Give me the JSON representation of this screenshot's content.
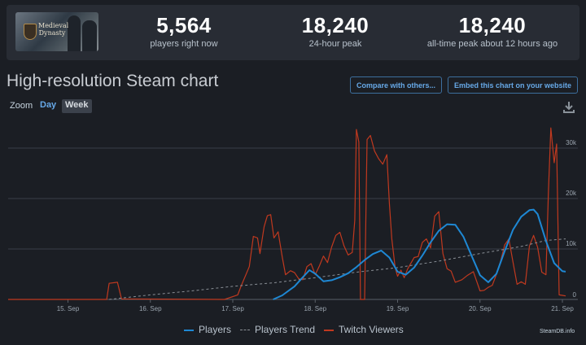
{
  "stats": [
    {
      "value": "5,564",
      "label": "players right now"
    },
    {
      "value": "18,240",
      "label": "24-hour peak"
    },
    {
      "value": "18,240",
      "label": "all-time peak about 12 hours ago"
    }
  ],
  "game_logo": {
    "line1": "Medieval",
    "line2": "Dynasty"
  },
  "title": "High-resolution Steam chart",
  "buttons": {
    "compare": "Compare with others...",
    "embed": "Embed this chart on your website"
  },
  "zoom": {
    "label": "Zoom",
    "day": "Day",
    "week": "Week"
  },
  "credit": "SteamDB.info",
  "colors": {
    "players": "#1e88d4",
    "trend": "#8a8f96",
    "twitch": "#c0391f",
    "background": "#1b1e24"
  },
  "chart_data": {
    "type": "line",
    "x_ticks": [
      "15. Sep",
      "16. Sep",
      "17. Sep",
      "18. Sep",
      "19. Sep",
      "20. Sep",
      "21. Sep"
    ],
    "y_ticks": [
      "0",
      "10k",
      "20k",
      "30k"
    ],
    "ylim": [
      0,
      35000
    ],
    "legend": "bottom",
    "grid": true,
    "series": [
      {
        "name": "Players",
        "points": [
          [
            2.49,
            0
          ],
          [
            2.6,
            800
          ],
          [
            2.75,
            2600
          ],
          [
            2.85,
            4400
          ],
          [
            2.93,
            5800
          ],
          [
            3.0,
            5100
          ],
          [
            3.1,
            3600
          ],
          [
            3.2,
            3800
          ],
          [
            3.3,
            4400
          ],
          [
            3.4,
            5200
          ],
          [
            3.5,
            6400
          ],
          [
            3.6,
            7800
          ],
          [
            3.7,
            9000
          ],
          [
            3.8,
            9700
          ],
          [
            3.9,
            8300
          ],
          [
            4.0,
            5500
          ],
          [
            4.1,
            4900
          ],
          [
            4.2,
            6300
          ],
          [
            4.3,
            8700
          ],
          [
            4.4,
            11300
          ],
          [
            4.5,
            13600
          ],
          [
            4.6,
            14900
          ],
          [
            4.7,
            14800
          ],
          [
            4.8,
            12400
          ],
          [
            4.9,
            8600
          ],
          [
            5.0,
            4800
          ],
          [
            5.1,
            3400
          ],
          [
            5.2,
            5100
          ],
          [
            5.3,
            9600
          ],
          [
            5.4,
            13800
          ],
          [
            5.5,
            16400
          ],
          [
            5.6,
            17700
          ],
          [
            5.65,
            17800
          ],
          [
            5.7,
            16900
          ],
          [
            5.8,
            11600
          ],
          [
            5.9,
            7200
          ],
          [
            6.0,
            5600
          ],
          [
            6.04,
            5500
          ]
        ]
      },
      {
        "name": "Players Trend",
        "points": [
          [
            0.5,
            0
          ],
          [
            1.0,
            900
          ],
          [
            1.5,
            1700
          ],
          [
            2.0,
            2600
          ],
          [
            2.5,
            3300
          ],
          [
            3.0,
            4300
          ],
          [
            3.5,
            5400
          ],
          [
            4.0,
            6300
          ],
          [
            4.5,
            7600
          ],
          [
            5.0,
            9100
          ],
          [
            5.5,
            10500
          ],
          [
            5.8,
            11700
          ],
          [
            6.04,
            12000
          ]
        ]
      },
      {
        "name": "Twitch Viewers",
        "points": [
          [
            -2.5,
            0
          ],
          [
            0.47,
            0
          ],
          [
            0.5,
            3200
          ],
          [
            0.6,
            3400
          ],
          [
            0.65,
            100
          ],
          [
            1.9,
            0
          ],
          [
            2.06,
            900
          ],
          [
            2.1,
            2600
          ],
          [
            2.2,
            6500
          ],
          [
            2.25,
            12500
          ],
          [
            2.3,
            12200
          ],
          [
            2.33,
            9100
          ],
          [
            2.38,
            14400
          ],
          [
            2.42,
            16600
          ],
          [
            2.46,
            16800
          ],
          [
            2.5,
            12200
          ],
          [
            2.55,
            13400
          ],
          [
            2.6,
            8400
          ],
          [
            2.64,
            4900
          ],
          [
            2.7,
            5700
          ],
          [
            2.75,
            5300
          ],
          [
            2.8,
            4100
          ],
          [
            2.85,
            3900
          ],
          [
            2.9,
            6500
          ],
          [
            2.95,
            7100
          ],
          [
            3.0,
            4900
          ],
          [
            3.05,
            6600
          ],
          [
            3.1,
            8600
          ],
          [
            3.15,
            7300
          ],
          [
            3.2,
            10400
          ],
          [
            3.25,
            12700
          ],
          [
            3.3,
            13300
          ],
          [
            3.35,
            10600
          ],
          [
            3.4,
            8800
          ],
          [
            3.45,
            9300
          ],
          [
            3.48,
            15700
          ],
          [
            3.5,
            33700
          ],
          [
            3.53,
            31200
          ],
          [
            3.55,
            0
          ],
          [
            3.6,
            0
          ],
          [
            3.63,
            31700
          ],
          [
            3.67,
            32500
          ],
          [
            3.72,
            29400
          ],
          [
            3.77,
            27900
          ],
          [
            3.82,
            26800
          ],
          [
            3.87,
            28700
          ],
          [
            3.9,
            19100
          ],
          [
            3.93,
            12000
          ],
          [
            3.97,
            6300
          ],
          [
            4.0,
            4600
          ],
          [
            4.04,
            5800
          ],
          [
            4.08,
            4300
          ],
          [
            4.12,
            6000
          ],
          [
            4.2,
            8300
          ],
          [
            4.25,
            8500
          ],
          [
            4.3,
            11300
          ],
          [
            4.35,
            12000
          ],
          [
            4.4,
            10200
          ],
          [
            4.45,
            16500
          ],
          [
            4.5,
            17400
          ],
          [
            4.55,
            9100
          ],
          [
            4.6,
            6100
          ],
          [
            4.65,
            5600
          ],
          [
            4.7,
            3400
          ],
          [
            4.78,
            3900
          ],
          [
            4.85,
            4800
          ],
          [
            4.92,
            5500
          ],
          [
            5.0,
            1700
          ],
          [
            5.05,
            1800
          ],
          [
            5.1,
            2400
          ],
          [
            5.15,
            2800
          ],
          [
            5.2,
            5000
          ],
          [
            5.25,
            7600
          ],
          [
            5.3,
            10800
          ],
          [
            5.35,
            12000
          ],
          [
            5.4,
            7400
          ],
          [
            5.45,
            3000
          ],
          [
            5.5,
            3500
          ],
          [
            5.55,
            3000
          ],
          [
            5.6,
            10600
          ],
          [
            5.65,
            12700
          ],
          [
            5.7,
            10300
          ],
          [
            5.75,
            5400
          ],
          [
            5.8,
            4900
          ],
          [
            5.83,
            21200
          ],
          [
            5.86,
            34000
          ],
          [
            5.9,
            27100
          ],
          [
            5.93,
            30800
          ],
          [
            5.96,
            900
          ],
          [
            6.0,
            800
          ],
          [
            6.04,
            700
          ]
        ]
      }
    ]
  }
}
